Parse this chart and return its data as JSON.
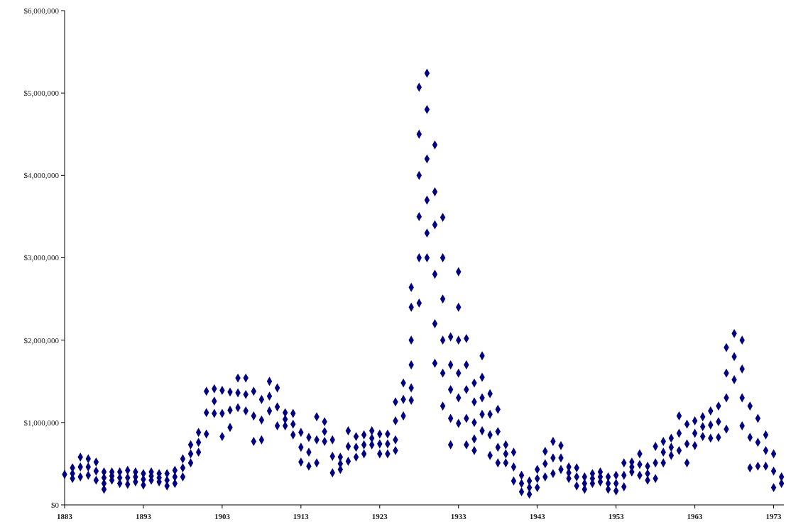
{
  "chart_data": {
    "type": "scatter",
    "marker": "diamond",
    "xlim": [
      1883,
      1974.3
    ],
    "xticks": [
      1883,
      1893,
      1903,
      1913,
      1923,
      1933,
      1943,
      1953,
      1963,
      1973
    ],
    "ylim": [
      0,
      6000000
    ],
    "yticks": [
      {
        "value": 0,
        "label": "$0"
      },
      {
        "value": 1000000,
        "label": "$1,000,000"
      },
      {
        "value": 2000000,
        "label": "$2,000,000"
      },
      {
        "value": 3000000,
        "label": "$3,000,000"
      },
      {
        "value": 4000000,
        "label": "$4,000,000"
      },
      {
        "value": 5000000,
        "label": "$5,000,000"
      },
      {
        "value": 6000000,
        "label": "$6,000,000"
      }
    ],
    "series": [
      {
        "color": "#000080",
        "x": [
          1883,
          1884,
          1884,
          1884,
          1885,
          1885,
          1885,
          1886,
          1886,
          1886,
          1887,
          1887,
          1887,
          1888,
          1888,
          1888,
          1888,
          1889,
          1889,
          1889,
          1890,
          1890,
          1890,
          1891,
          1891,
          1891,
          1892,
          1892,
          1892,
          1893,
          1893,
          1893,
          1894,
          1894,
          1894,
          1895,
          1895,
          1895,
          1896,
          1896,
          1896,
          1897,
          1897,
          1897,
          1898,
          1898,
          1898,
          1899,
          1899,
          1899,
          1900,
          1900,
          1900,
          1901,
          1901,
          1901,
          1902,
          1902,
          1902,
          1903,
          1903,
          1903,
          1904,
          1904,
          1904,
          1905,
          1905,
          1905,
          1906,
          1906,
          1906,
          1907,
          1907,
          1907,
          1908,
          1908,
          1908,
          1909,
          1909,
          1909,
          1910,
          1910,
          1910,
          1911,
          1911,
          1911,
          1912,
          1912,
          1912,
          1913,
          1913,
          1913,
          1914,
          1914,
          1914,
          1915,
          1915,
          1915,
          1916,
          1916,
          1916,
          1917,
          1917,
          1917,
          1918,
          1918,
          1918,
          1919,
          1919,
          1919,
          1920,
          1920,
          1920,
          1921,
          1921,
          1921,
          1922,
          1922,
          1922,
          1923,
          1923,
          1923,
          1924,
          1924,
          1924,
          1925,
          1925,
          1925,
          1925,
          1926,
          1926,
          1926,
          1927,
          1927,
          1927,
          1927,
          1927,
          1927,
          1928,
          1928,
          1928,
          1928,
          1928,
          1928,
          1929,
          1929,
          1929,
          1929,
          1929,
          1929,
          1930,
          1930,
          1930,
          1930,
          1930,
          1930,
          1931,
          1931,
          1931,
          1931,
          1931,
          1931,
          1932,
          1932,
          1932,
          1932,
          1932,
          1933,
          1933,
          1933,
          1933,
          1933,
          1933,
          1934,
          1934,
          1934,
          1934,
          1934,
          1935,
          1935,
          1935,
          1935,
          1935,
          1936,
          1936,
          1936,
          1936,
          1936,
          1937,
          1937,
          1937,
          1937,
          1938,
          1938,
          1938,
          1938,
          1939,
          1939,
          1939,
          1940,
          1940,
          1940,
          1941,
          1941,
          1941,
          1942,
          1942,
          1942,
          1943,
          1943,
          1943,
          1944,
          1944,
          1944,
          1945,
          1945,
          1945,
          1946,
          1946,
          1946,
          1947,
          1947,
          1947,
          1948,
          1948,
          1948,
          1949,
          1949,
          1949,
          1950,
          1950,
          1950,
          1951,
          1951,
          1951,
          1952,
          1952,
          1952,
          1953,
          1953,
          1953,
          1954,
          1954,
          1954,
          1955,
          1955,
          1955,
          1956,
          1956,
          1956,
          1957,
          1957,
          1957,
          1958,
          1958,
          1958,
          1959,
          1959,
          1959,
          1960,
          1960,
          1960,
          1961,
          1961,
          1961,
          1962,
          1962,
          1962,
          1963,
          1963,
          1963,
          1964,
          1964,
          1964,
          1965,
          1965,
          1965,
          1966,
          1966,
          1966,
          1967,
          1967,
          1967,
          1967,
          1968,
          1968,
          1968,
          1969,
          1969,
          1969,
          1969,
          1970,
          1970,
          1970,
          1971,
          1971,
          1971,
          1972,
          1972,
          1972,
          1973,
          1973,
          1973,
          1974,
          1974
        ],
        "values": [
          370000,
          450000,
          380000,
          320000,
          580000,
          460000,
          340000,
          560000,
          460000,
          360000,
          520000,
          410000,
          300000,
          400000,
          330000,
          260000,
          190000,
          400000,
          350000,
          300000,
          400000,
          330000,
          260000,
          420000,
          330000,
          250000,
          400000,
          340000,
          280000,
          380000,
          310000,
          240000,
          400000,
          350000,
          300000,
          380000,
          330000,
          280000,
          380000,
          300000,
          230000,
          420000,
          340000,
          260000,
          560000,
          450000,
          340000,
          730000,
          620000,
          510000,
          880000,
          760000,
          640000,
          1380000,
          1120000,
          860000,
          1410000,
          1260000,
          1110000,
          1390000,
          1110000,
          830000,
          1370000,
          1150000,
          940000,
          1540000,
          1360000,
          1180000,
          1540000,
          1340000,
          1140000,
          1380000,
          1080000,
          770000,
          1280000,
          1030000,
          790000,
          1500000,
          1320000,
          1140000,
          1420000,
          1190000,
          960000,
          1120000,
          1040000,
          960000,
          1110000,
          980000,
          850000,
          880000,
          700000,
          520000,
          820000,
          640000,
          470000,
          1070000,
          790000,
          510000,
          1010000,
          890000,
          770000,
          790000,
          590000,
          390000,
          580000,
          500000,
          430000,
          900000,
          710000,
          530000,
          830000,
          700000,
          580000,
          850000,
          730000,
          620000,
          900000,
          810000,
          730000,
          860000,
          740000,
          620000,
          860000,
          740000,
          620000,
          1250000,
          1020000,
          790000,
          660000,
          1480000,
          1280000,
          1080000,
          2640000,
          2400000,
          2000000,
          1700000,
          1420000,
          1270000,
          5070000,
          4500000,
          4000000,
          3500000,
          3000000,
          2450000,
          5240000,
          4800000,
          4200000,
          3700000,
          3300000,
          3000000,
          4370000,
          3800000,
          3400000,
          2800000,
          2200000,
          1720000,
          3490000,
          3000000,
          2500000,
          2000000,
          1600000,
          1200000,
          2040000,
          1700000,
          1400000,
          1050000,
          730000,
          2830000,
          2400000,
          2000000,
          1600000,
          1300000,
          990000,
          2020000,
          1700000,
          1400000,
          1050000,
          730000,
          1480000,
          1250000,
          1000000,
          800000,
          660000,
          1810000,
          1550000,
          1300000,
          1100000,
          900000,
          1350000,
          1100000,
          850000,
          600000,
          1160000,
          890000,
          700000,
          510000,
          730000,
          620000,
          510000,
          640000,
          460000,
          290000,
          360000,
          260000,
          160000,
          290000,
          210000,
          130000,
          430000,
          320000,
          210000,
          650000,
          500000,
          340000,
          770000,
          570000,
          380000,
          720000,
          570000,
          430000,
          460000,
          390000,
          320000,
          450000,
          340000,
          230000,
          340000,
          260000,
          190000,
          380000,
          320000,
          260000,
          400000,
          340000,
          280000,
          340000,
          260000,
          190000,
          360000,
          260000,
          170000,
          510000,
          360000,
          220000,
          520000,
          460000,
          400000,
          620000,
          490000,
          360000,
          470000,
          380000,
          300000,
          710000,
          510000,
          320000,
          770000,
          640000,
          510000,
          810000,
          700000,
          600000,
          1080000,
          870000,
          660000,
          980000,
          740000,
          510000,
          1020000,
          870000,
          720000,
          1070000,
          950000,
          830000,
          1140000,
          970000,
          810000,
          1200000,
          1010000,
          820000,
          1910000,
          1600000,
          1300000,
          920000,
          2080000,
          1800000,
          1520000,
          2000000,
          1650000,
          1300000,
          960000,
          1200000,
          820000,
          450000,
          1050000,
          760000,
          470000,
          850000,
          660000,
          470000,
          620000,
          410000,
          210000,
          340000,
          260000
        ]
      }
    ]
  }
}
